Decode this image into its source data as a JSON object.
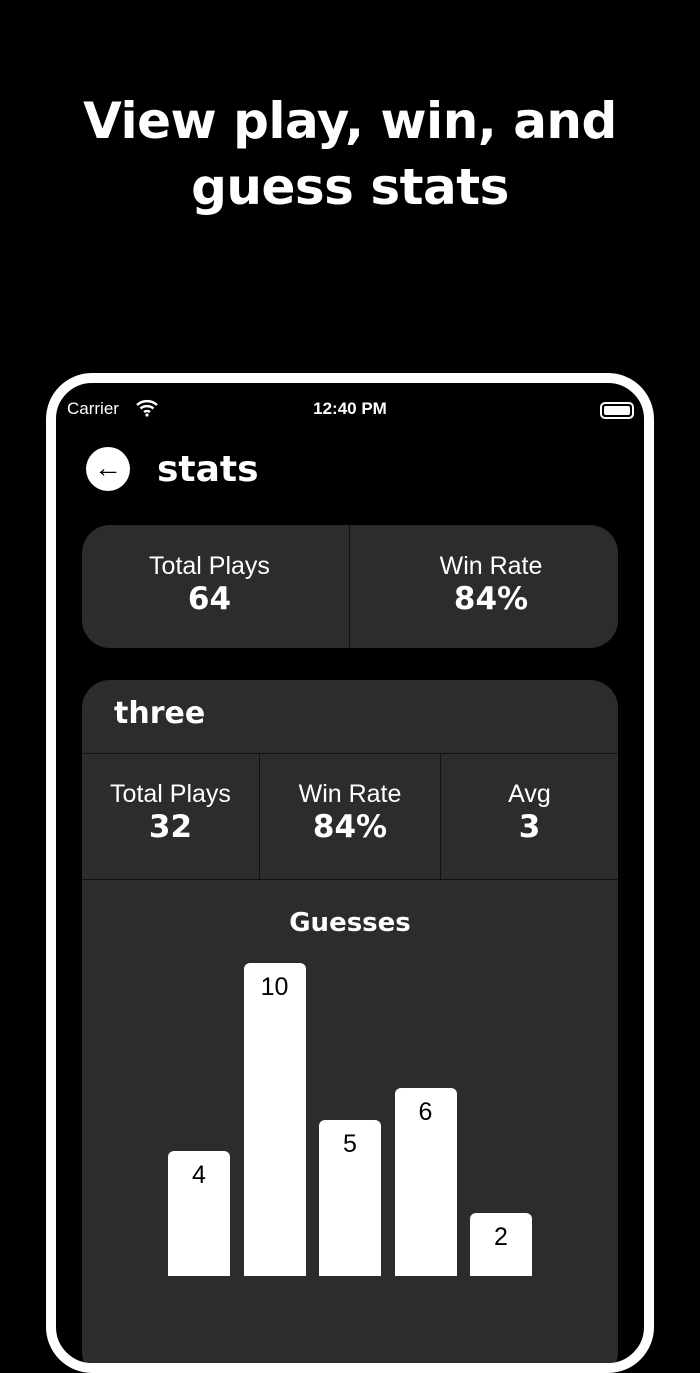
{
  "headline": [
    "View play, win, and",
    "guess stats"
  ],
  "status_bar": {
    "carrier": "Carrier",
    "time": "12:40 PM",
    "icons": [
      "wifi-icon",
      "battery-icon"
    ]
  },
  "header": {
    "back_icon": "arrow-left-icon",
    "title": "stats"
  },
  "overall": {
    "total_plays_label": "Total Plays",
    "total_plays": "64",
    "win_rate_label": "Win Rate",
    "win_rate": "84%"
  },
  "mode": {
    "name": "three",
    "total_plays_label": "Total Plays",
    "total_plays": "32",
    "win_rate_label": "Win Rate",
    "win_rate": "84%",
    "avg_label": "Avg",
    "avg": "3"
  },
  "chart_data": {
    "type": "bar",
    "title": "Guesses",
    "values": [
      4,
      10,
      5,
      6,
      2
    ],
    "bar_color": "#ffffff",
    "background": "#2c2c2e",
    "grid": false
  }
}
